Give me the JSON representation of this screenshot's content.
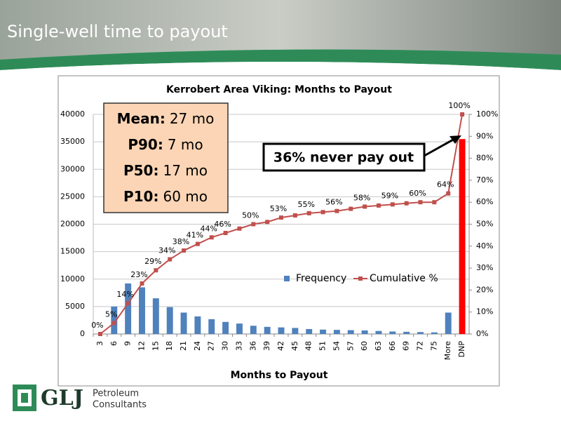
{
  "slide_title": "Single-well time to payout",
  "logo": {
    "mark": "GLJ",
    "line1": "Petroleum",
    "line2": "Consultants"
  },
  "chart_data": {
    "type": "bar",
    "title": "Kerrobert Area Viking: Months to Payout",
    "x_label": "Months to Payout",
    "categories": [
      "3",
      "6",
      "9",
      "12",
      "15",
      "18",
      "21",
      "24",
      "27",
      "30",
      "33",
      "36",
      "39",
      "42",
      "45",
      "48",
      "51",
      "54",
      "57",
      "60",
      "63",
      "66",
      "69",
      "72",
      "75",
      "More",
      "DNP"
    ],
    "series": [
      {
        "name": "Frequency",
        "type": "bar",
        "color": "#4f81bd",
        "point_colors": [
          "#4f81bd",
          "#4f81bd",
          "#4f81bd",
          "#4f81bd",
          "#4f81bd",
          "#4f81bd",
          "#4f81bd",
          "#4f81bd",
          "#4f81bd",
          "#4f81bd",
          "#4f81bd",
          "#4f81bd",
          "#4f81bd",
          "#4f81bd",
          "#4f81bd",
          "#4f81bd",
          "#4f81bd",
          "#4f81bd",
          "#4f81bd",
          "#4f81bd",
          "#4f81bd",
          "#4f81bd",
          "#4f81bd",
          "#4f81bd",
          "#4f81bd",
          "#4f81bd",
          "#ff0000"
        ],
        "values": [
          0,
          5000,
          9200,
          8500,
          6500,
          4900,
          3900,
          3200,
          2700,
          2200,
          1900,
          1500,
          1300,
          1200,
          1100,
          900,
          800,
          750,
          700,
          650,
          550,
          450,
          400,
          350,
          300,
          3900,
          35500
        ]
      },
      {
        "name": "Cumulative %",
        "type": "line",
        "color": "#c0504d",
        "axis": "y2",
        "values": [
          0,
          5,
          14,
          23,
          29,
          34,
          38,
          41,
          44,
          46,
          48,
          50,
          51,
          53,
          54,
          55,
          55.5,
          56,
          57,
          58,
          58.5,
          59,
          59.5,
          60,
          60,
          64,
          100
        ],
        "value_labels": [
          "0%",
          "5%",
          "14%",
          "23%",
          "29%",
          "34%",
          "38%",
          "41%",
          "44%",
          "46%",
          null,
          "50%",
          null,
          "53%",
          null,
          "55%",
          null,
          "56%",
          null,
          "58%",
          null,
          "59%",
          null,
          "60%",
          null,
          "64%",
          "100%"
        ]
      }
    ],
    "ylim": [
      0,
      40000
    ],
    "yticks": [
      0,
      5000,
      10000,
      15000,
      20000,
      25000,
      30000,
      35000,
      40000
    ],
    "y2lim": [
      0,
      100
    ],
    "y2ticks": [
      {
        "value": 0,
        "label": "0%"
      },
      {
        "value": 10,
        "label": "10%"
      },
      {
        "value": 20,
        "label": "20%"
      },
      {
        "value": 30,
        "label": "30%"
      },
      {
        "value": 40,
        "label": "40%"
      },
      {
        "value": 50,
        "label": "50%"
      },
      {
        "value": 60,
        "label": "60%"
      },
      {
        "value": 70,
        "label": "70%"
      },
      {
        "value": 80,
        "label": "80%"
      },
      {
        "value": 90,
        "label": "90%"
      },
      {
        "value": 100,
        "label": "100%"
      }
    ],
    "grid": true,
    "legend": "inside",
    "stats": [
      {
        "label": "Mean:",
        "value": "27 mo"
      },
      {
        "label": "P90:",
        "value": "7 mo"
      },
      {
        "label": "P50:",
        "value": "17 mo"
      },
      {
        "label": "P10:",
        "value": "60 mo"
      }
    ],
    "callout": "36% never pay out"
  }
}
